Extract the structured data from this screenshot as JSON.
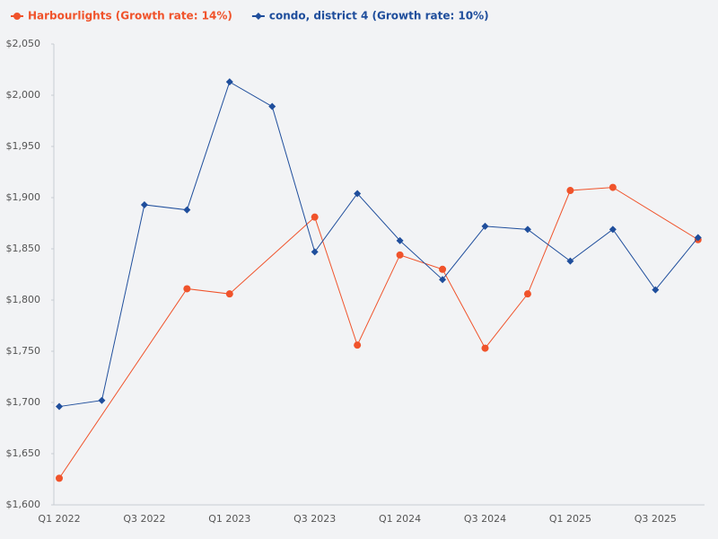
{
  "chart_data": {
    "type": "line",
    "categories": [
      "Q1 2022",
      null,
      "Q3 2022",
      null,
      "Q1 2023",
      null,
      "Q3 2023",
      null,
      "Q1 2024",
      null,
      "Q3 2024",
      null,
      "Q1 2025",
      null,
      "Q3 2025",
      null
    ],
    "series": [
      {
        "name": "Harbourlights (Growth rate: 14%)",
        "color": "#f0532b",
        "marker": "circle",
        "values": [
          1626,
          null,
          null,
          1811,
          1806,
          null,
          1881,
          1756,
          1844,
          1830,
          1753,
          1806,
          1907,
          1910,
          null,
          1859
        ]
      },
      {
        "name": "condo, district 4 (Growth rate: 10%)",
        "color": "#1f4e9c",
        "marker": "diamond",
        "values": [
          1696,
          1702,
          1893,
          1888,
          2013,
          1989,
          1847,
          1904,
          1858,
          1820,
          1872,
          1869,
          1838,
          1869,
          1810,
          1861
        ]
      }
    ],
    "connect_gaps": true,
    "ylim": [
      1600,
      2050
    ],
    "yticks": [
      {
        "value": 1600,
        "label": "$1,600"
      },
      {
        "value": 1650,
        "label": "$1,650"
      },
      {
        "value": 1700,
        "label": "$1,700"
      },
      {
        "value": 1750,
        "label": "$1,750"
      },
      {
        "value": 1800,
        "label": "$1,800"
      },
      {
        "value": 1850,
        "label": "$1,850"
      },
      {
        "value": 1900,
        "label": "$1,900"
      },
      {
        "value": 1950,
        "label": "$1,950"
      },
      {
        "value": 2000,
        "label": "$2,000"
      },
      {
        "value": 2050,
        "label": "$2,050"
      }
    ],
    "grid": false
  }
}
